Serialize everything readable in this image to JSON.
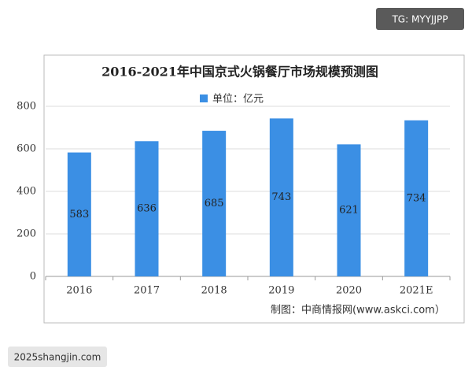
{
  "badges": {
    "top_right": "TG: MYYJJPP",
    "bottom_left": "2025shangjin.com"
  },
  "chart_data": {
    "type": "bar",
    "title": "2016-2021年中国京式火锅餐厅市场规模预测图",
    "categories": [
      "2016",
      "2017",
      "2018",
      "2019",
      "2020",
      "2021E"
    ],
    "series": [
      {
        "name": "单位：亿元",
        "color": "#3b8fe4",
        "values": [
          583,
          636,
          685,
          743,
          621,
          734
        ]
      }
    ],
    "ylim": [
      0,
      800
    ],
    "yticks": [
      0,
      200,
      400,
      600,
      800
    ],
    "grid": true,
    "source": "制图：中商情报网(www.askci.com）"
  }
}
